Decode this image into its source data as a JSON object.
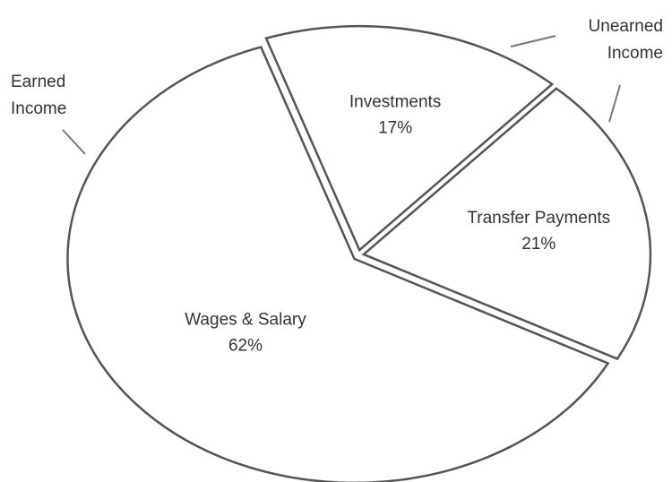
{
  "chart_data": {
    "type": "pie",
    "categories": [
      "Investments",
      "Transfer Payments",
      "Wages & Salary"
    ],
    "values": [
      17,
      21,
      62
    ],
    "value_labels": [
      "17%",
      "21%",
      "62%"
    ],
    "annotations": [
      {
        "lines": [
          "Earned",
          "Income"
        ]
      },
      {
        "lines": [
          "Unearned",
          "Income"
        ]
      }
    ]
  }
}
